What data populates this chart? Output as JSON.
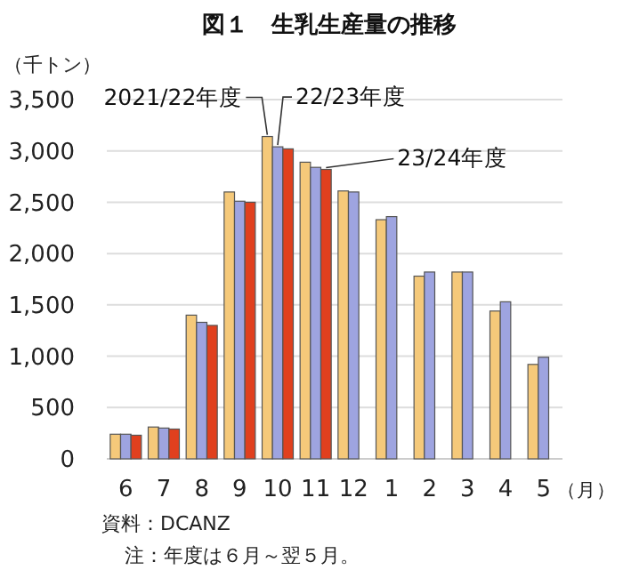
{
  "chart_data": {
    "type": "bar",
    "title": "図１　生乳生産量の推移",
    "ylabel": "（千トン）",
    "xlabel": "（月）",
    "categories": [
      "6",
      "7",
      "8",
      "9",
      "10",
      "11",
      "12",
      "1",
      "2",
      "3",
      "4",
      "5"
    ],
    "series": [
      {
        "name": "2021/22年度",
        "color": "#f5c97a",
        "values": [
          240,
          310,
          1400,
          2600,
          3140,
          2890,
          2610,
          2330,
          1780,
          1820,
          1440,
          920
        ]
      },
      {
        "name": "22/23年度",
        "color": "#9ea4e0",
        "values": [
          240,
          300,
          1330,
          2510,
          3040,
          2840,
          2600,
          2360,
          1820,
          1820,
          1530,
          990
        ]
      },
      {
        "name": "23/24年度",
        "color": "#e0401e",
        "values": [
          230,
          290,
          1300,
          2500,
          3020,
          2820,
          null,
          null,
          null,
          null,
          null,
          null
        ]
      }
    ],
    "ylim": [
      0,
      3500
    ],
    "yticks": [
      0,
      {
        "value": 500,
        "label": "500"
      },
      {
        "value": 1000,
        "label": "1,000"
      },
      {
        "value": 1500,
        "label": "1,500"
      },
      {
        "value": 2000,
        "label": "2,000"
      },
      {
        "value": 2500,
        "label": "2,500"
      },
      {
        "value": 3000,
        "label": "3,000"
      },
      {
        "value": 3500,
        "label": "3,500"
      }
    ],
    "grid": "y",
    "legend": false,
    "annotations": [
      "資料：DCANZ",
      "注：年度は６月～翌５月。"
    ]
  }
}
